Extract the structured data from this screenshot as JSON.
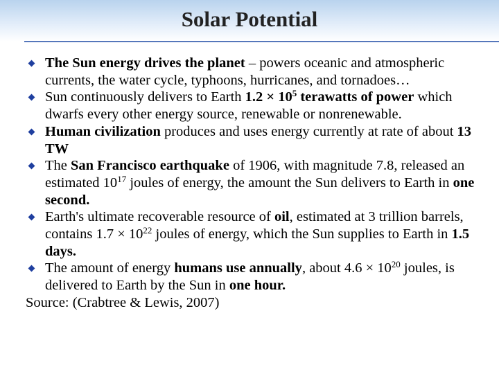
{
  "title": "Solar Potential",
  "bullets": [
    {
      "runs": [
        {
          "text": "The Sun energy drives the planet",
          "bold": true
        },
        {
          "text": " – powers oceanic and atmospheric currents, the water cycle, typhoons, hurricanes, and tornadoes…"
        }
      ]
    },
    {
      "runs": [
        {
          "text": "Sun continuously delivers to Earth "
        },
        {
          "text": "1.2 × 10",
          "bold": true
        },
        {
          "text": "5",
          "bold": true,
          "sup": true
        },
        {
          "text": " terawatts of power",
          "bold": true
        },
        {
          "text": " which dwarfs every other energy source, renewable or nonrenewable."
        }
      ]
    },
    {
      "runs": [
        {
          "text": "Human civilization",
          "bold": true
        },
        {
          "text": " produces and uses energy currently at rate of about "
        },
        {
          "text": "13 TW",
          "bold": true
        }
      ]
    },
    {
      "runs": [
        {
          "text": "The "
        },
        {
          "text": "San Francisco earthquake",
          "bold": true
        },
        {
          "text": " of 1906, with magnitude 7.8, released an estimated 10"
        },
        {
          "text": "17",
          "sup": true
        },
        {
          "text": " joules of energy, the amount the Sun delivers to Earth in "
        },
        {
          "text": "one second.",
          "bold": true
        }
      ]
    },
    {
      "runs": [
        {
          "text": "Earth's ultimate recoverable resource of "
        },
        {
          "text": "oil",
          "bold": true
        },
        {
          "text": ", estimated at 3 trillion barrels, contains 1.7 × 10"
        },
        {
          "text": "22",
          "sup": true
        },
        {
          "text": " joules of energy, which the Sun supplies to Earth in "
        },
        {
          "text": "1.5 days.",
          "bold": true
        }
      ]
    },
    {
      "runs": [
        {
          "text": "The amount of energy "
        },
        {
          "text": "humans use annually",
          "bold": true
        },
        {
          "text": ", about 4.6 × 10"
        },
        {
          "text": "20",
          "sup": true
        },
        {
          "text": " joules, is delivered to Earth by the Sun in "
        },
        {
          "text": "one hour.",
          "bold": true
        }
      ]
    }
  ],
  "source": "Source: (Crabtree & Lewis, 2007)"
}
